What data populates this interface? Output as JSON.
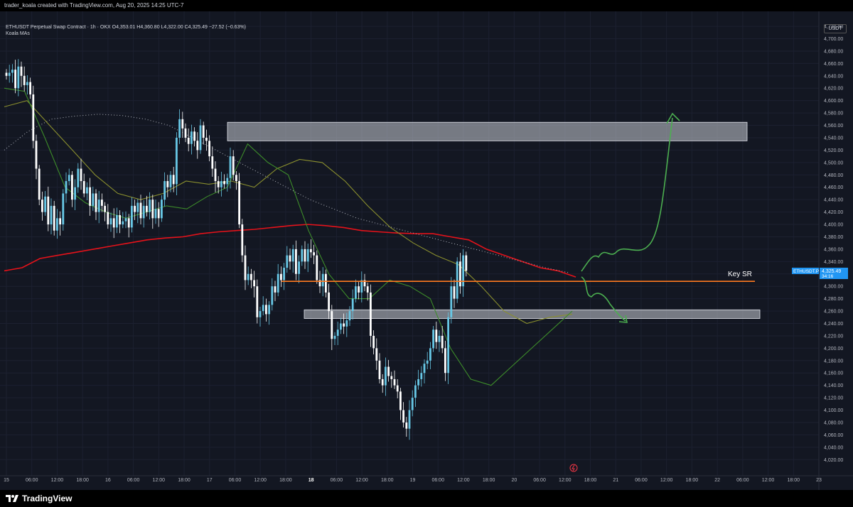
{
  "header": {
    "attribution": "trader_koala created with TradingView.com, Aug 20, 2025 14:25 UTC-7"
  },
  "legend": {
    "symbol_line": "ETHUSDT Perpetual Swap Contract · 1h · OKX  O4,353.01  H4,360.80  L4,322.00  C4,325.49  −27.52 (−0.63%)",
    "indicator": "Koala MAs"
  },
  "price_scale": {
    "currency_button": "USDT",
    "symbol_tag": "ETHUSDT.P",
    "last_price": "4,325.49",
    "countdown": "34:16"
  },
  "annotations": {
    "key_sr": "Key SR"
  },
  "footer": {
    "brand": "TradingView"
  },
  "colors": {
    "background": "#131722",
    "up_candle": "#67c7e5",
    "down_candle": "#ffffff",
    "ma_long": "#e5121a",
    "ma_fast": "#3d8c2a",
    "ma_mid": "#8a8f2e",
    "key_sr_line": "#ff7a1f",
    "arrows": "#4caf50",
    "zones": "#c9ccd4",
    "price_tag": "#2196f3"
  },
  "chart_data": {
    "type": "candlestick",
    "symbol": "ETHUSDT",
    "exchange": "OKX",
    "timeframe": "1h",
    "ohlc_last": {
      "open": 4353.01,
      "high": 4360.8,
      "low": 4322.0,
      "close": 4325.49,
      "change": -27.52,
      "change_pct": -0.63
    },
    "ylim": [
      4010,
      4735
    ],
    "y_ticks": [
      "4,720.00",
      "4,700.00",
      "4,680.00",
      "4,660.00",
      "4,640.00",
      "4,620.00",
      "4,600.00",
      "4,580.00",
      "4,560.00",
      "4,540.00",
      "4,520.00",
      "4,500.00",
      "4,480.00",
      "4,460.00",
      "4,440.00",
      "4,420.00",
      "4,400.00",
      "4,380.00",
      "4,360.00",
      "4,340.00",
      "4,320.00",
      "4,300.00",
      "4,280.00",
      "4,260.00",
      "4,240.00",
      "4,220.00",
      "4,200.00",
      "4,180.00",
      "4,160.00",
      "4,140.00",
      "4,120.00",
      "4,100.00",
      "4,080.00",
      "4,060.00",
      "4,040.00",
      "4,020.00"
    ],
    "x_ticks": [
      "15",
      "06:00",
      "12:00",
      "18:00",
      "16",
      "06:00",
      "12:00",
      "18:00",
      "17",
      "06:00",
      "12:00",
      "18:00",
      "18",
      "06:00",
      "12:00",
      "18:00",
      "19",
      "06:00",
      "12:00",
      "18:00",
      "20",
      "06:00",
      "12:00",
      "18:00",
      "21",
      "06:00",
      "12:00",
      "18:00",
      "22",
      "06:00",
      "12:00",
      "18:00",
      "23"
    ],
    "x_bold": [
      "18"
    ],
    "series": [
      {
        "kind": "candles",
        "closes": [
          4640,
          4645,
          4650,
          4620,
          4655,
          4640,
          4625,
          4630,
          4610,
          4535,
          4490,
          4440,
          4420,
          4445,
          4400,
          4430,
          4390,
          4410,
          4400,
          4450,
          4470,
          4480,
          4440,
          4460,
          4490,
          4470,
          4450,
          4460,
          4430,
          4450,
          4420,
          4440,
          4430,
          4420,
          4400,
          4410,
          4395,
          4415,
          4400,
          4405,
          4410,
          4395,
          4430,
          4420,
          4435,
          4410,
          4430,
          4420,
          4440,
          4410,
          4425,
          4410,
          4440,
          4470,
          4460,
          4480,
          4465,
          4540,
          4570,
          4555,
          4540,
          4530,
          4550,
          4535,
          4520,
          4560,
          4540,
          4535,
          4510,
          4490,
          4470,
          4460,
          4470,
          4465,
          4475,
          4510,
          4480,
          4470,
          4400,
          4350,
          4310,
          4320,
          4310,
          4300,
          4250,
          4260,
          4270,
          4255,
          4270,
          4300,
          4290,
          4320,
          4310,
          4330,
          4350,
          4340,
          4360,
          4320,
          4340,
          4360,
          4340,
          4360,
          4355,
          4350,
          4310,
          4300,
          4320,
          4290,
          4260,
          4215,
          4220,
          4230,
          4240,
          4235,
          4245,
          4260,
          4280,
          4300,
          4290,
          4310,
          4300,
          4290,
          4220,
          4200,
          4180,
          4150,
          4140,
          4170,
          4155,
          4150,
          4140,
          4130,
          4100,
          4080,
          4070,
          4100,
          4120,
          4140,
          4150,
          4160,
          4175,
          4180,
          4200,
          4230,
          4210,
          4220,
          4200,
          4160,
          4250,
          4300,
          4280,
          4340,
          4300,
          4350,
          4325
        ],
        "candles_ohlc_note": "approximate hourly closes"
      },
      {
        "kind": "ma",
        "name": "",
        "color": "#e5121a",
        "values": [
          4325,
          4330,
          4345,
          4350,
          4355,
          4360,
          4365,
          4370,
          4375,
          4378,
          4380,
          4385,
          4388,
          4390,
          4392,
          4395,
          4398,
          4400,
          4398,
          4395,
          4390,
          4388,
          4386,
          4385,
          4385,
          4380,
          4375,
          4360,
          4350,
          4340,
          4330,
          4325,
          4315
        ]
      },
      {
        "kind": "zone",
        "label": "",
        "top": 4565,
        "bottom": 4535
      },
      {
        "kind": "zone",
        "label": "",
        "top": 4262,
        "bottom": 4248
      },
      {
        "kind": "hline",
        "label": "Key SR",
        "value": 4308
      }
    ]
  }
}
